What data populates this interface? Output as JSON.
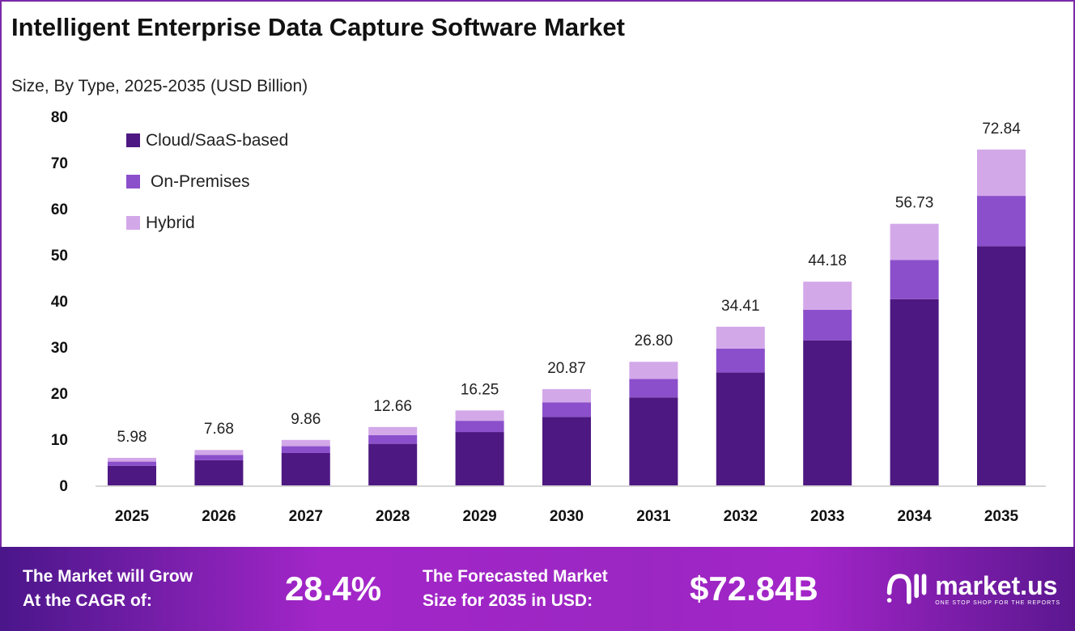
{
  "header": {
    "title": "Intelligent Enterprise Data Capture Software Market",
    "subtitle": "Size, By Type, 2025-2035 (USD Billion)"
  },
  "chart_data": {
    "type": "bar",
    "stacked": true,
    "title": "Intelligent Enterprise Data Capture Software Market",
    "subtitle": "Size, By Type, 2025-2035 (USD Billion)",
    "categories": [
      "2025",
      "2026",
      "2027",
      "2028",
      "2029",
      "2030",
      "2031",
      "2032",
      "2033",
      "2034",
      "2035"
    ],
    "series": [
      {
        "name": "Cloud/SaaS-based",
        "color": "#4e1882",
        "values": [
          4.26,
          5.47,
          7.02,
          9.01,
          11.57,
          14.86,
          19.08,
          24.5,
          31.46,
          40.39,
          51.86
        ]
      },
      {
        "name": "On-Premises",
        "color": "#8b4fcb",
        "values": [
          0.9,
          1.15,
          1.48,
          1.9,
          2.44,
          3.13,
          4.02,
          5.16,
          6.63,
          8.51,
          10.93
        ]
      },
      {
        "name": "Hybrid",
        "color": "#d3a8e9",
        "values": [
          0.82,
          1.06,
          1.36,
          1.75,
          2.24,
          2.88,
          3.7,
          4.75,
          6.09,
          7.83,
          10.05
        ]
      }
    ],
    "totals": [
      "5.98",
      "7.68",
      "9.86",
      "12.66",
      "16.25",
      "20.87",
      "26.80",
      "34.41",
      "44.18",
      "56.73",
      "72.84"
    ],
    "yticks": [
      "0",
      "10",
      "20",
      "30",
      "40",
      "50",
      "60",
      "70",
      "80"
    ],
    "ylim": [
      0,
      80
    ],
    "grid": false,
    "legend": "top-left"
  },
  "banner": {
    "cagr_label_1": "The Market will Grow",
    "cagr_label_2": "At the CAGR of:",
    "cagr_value": "28.4%",
    "forecast_label_1": "The Forecasted Market",
    "forecast_label_2": "Size for 2035 in USD:",
    "forecast_value": "$72.84B",
    "logo_text": "market.us",
    "logo_tagline": "ONE STOP SHOP FOR THE REPORTS"
  }
}
